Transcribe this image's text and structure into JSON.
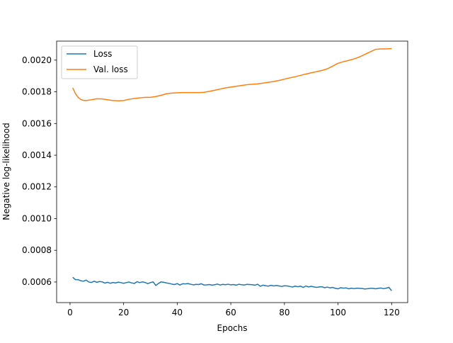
{
  "chart_data": {
    "type": "line",
    "title": "",
    "xlabel": "Epochs",
    "ylabel": "Negative log-likelihood",
    "xlim": [
      -5,
      126
    ],
    "ylim": [
      0.00047,
      0.00212
    ],
    "xticks": [
      0,
      20,
      40,
      60,
      80,
      100,
      120
    ],
    "yticks": [
      0.0006,
      0.0008,
      0.001,
      0.0012,
      0.0014,
      0.0016,
      0.0018,
      0.002
    ],
    "ytick_labels": [
      "0.0006",
      "0.0008",
      "0.0010",
      "0.0012",
      "0.0014",
      "0.0016",
      "0.0018",
      "0.0020"
    ],
    "grid": false,
    "legend_position": "top-left",
    "series": [
      {
        "name": "Loss",
        "color": "#1f77b4",
        "x": [
          1,
          2,
          3,
          4,
          5,
          6,
          7,
          8,
          9,
          10,
          11,
          12,
          13,
          14,
          15,
          16,
          17,
          18,
          19,
          20,
          21,
          22,
          23,
          24,
          25,
          26,
          27,
          28,
          29,
          30,
          31,
          32,
          33,
          34,
          35,
          36,
          37,
          38,
          39,
          40,
          41,
          42,
          43,
          44,
          45,
          46,
          47,
          48,
          49,
          50,
          51,
          52,
          53,
          54,
          55,
          56,
          57,
          58,
          59,
          60,
          61,
          62,
          63,
          64,
          65,
          66,
          67,
          68,
          69,
          70,
          71,
          72,
          73,
          74,
          75,
          76,
          77,
          78,
          79,
          80,
          81,
          82,
          83,
          84,
          85,
          86,
          87,
          88,
          89,
          90,
          91,
          92,
          93,
          94,
          95,
          96,
          97,
          98,
          99,
          100,
          101,
          102,
          103,
          104,
          105,
          106,
          107,
          108,
          109,
          110,
          111,
          112,
          113,
          114,
          115,
          116,
          117,
          118,
          119,
          120
        ],
        "y": [
          0.00063,
          0.000615,
          0.000615,
          0.000608,
          0.000605,
          0.000612,
          0.0006,
          0.000597,
          0.000605,
          0.000598,
          0.000603,
          0.000601,
          0.000593,
          0.000598,
          0.000592,
          0.000597,
          0.000594,
          0.000599,
          0.000596,
          0.000592,
          0.000596,
          0.0006,
          0.000594,
          0.000591,
          0.000602,
          0.000596,
          0.000601,
          0.000597,
          0.00059,
          0.000596,
          0.000601,
          0.000578,
          0.000591,
          0.000601,
          0.000598,
          0.000594,
          0.000591,
          0.000587,
          0.000584,
          0.00059,
          0.000581,
          0.000589,
          0.000588,
          0.00059,
          0.000586,
          0.000582,
          0.000585,
          0.000584,
          0.000589,
          0.000581,
          0.000582,
          0.000584,
          0.00058,
          0.000583,
          0.000587,
          0.000581,
          0.000585,
          0.000583,
          0.000586,
          0.000582,
          0.000584,
          0.00058,
          0.000586,
          0.000583,
          0.000581,
          0.000585,
          0.000584,
          0.000583,
          0.00058,
          0.000586,
          0.000573,
          0.00058,
          0.000576,
          0.000574,
          0.000579,
          0.000575,
          0.000578,
          0.000575,
          0.000572,
          0.000576,
          0.000575,
          0.000572,
          0.000568,
          0.000574,
          0.00057,
          0.000574,
          0.000566,
          0.000575,
          0.000569,
          0.000573,
          0.000569,
          0.000566,
          0.000569,
          0.00057,
          0.000564,
          0.000568,
          0.000563,
          0.000566,
          0.00056,
          0.000557,
          0.000564,
          0.000561,
          0.000563,
          0.000557,
          0.000561,
          0.000558,
          0.000561,
          0.00056,
          0.000559,
          0.000556,
          0.000558,
          0.00056,
          0.00056,
          0.000557,
          0.00056,
          0.000562,
          0.000558,
          0.000561,
          0.000566,
          0.000545
        ]
      },
      {
        "name": "Val. loss",
        "color": "#ff7f0e",
        "x": [
          1,
          2,
          3,
          4,
          5,
          6,
          8,
          10,
          12,
          14,
          16,
          18,
          20,
          22,
          24,
          26,
          28,
          30,
          32,
          34,
          36,
          38,
          40,
          42,
          44,
          46,
          48,
          50,
          52,
          54,
          56,
          58,
          60,
          62,
          64,
          66,
          68,
          70,
          72,
          74,
          76,
          78,
          80,
          82,
          84,
          86,
          88,
          90,
          92,
          94,
          96,
          98,
          100,
          102,
          104,
          106,
          108,
          110,
          112,
          114,
          116,
          118,
          120
        ],
        "y": [
          0.001825,
          0.00179,
          0.001765,
          0.001752,
          0.001746,
          0.001745,
          0.00175,
          0.001756,
          0.001755,
          0.00175,
          0.001745,
          0.001743,
          0.001745,
          0.001753,
          0.001758,
          0.001762,
          0.001765,
          0.001765,
          0.00177,
          0.001778,
          0.001788,
          0.001792,
          0.001794,
          0.001795,
          0.001795,
          0.001795,
          0.001795,
          0.001797,
          0.001803,
          0.00181,
          0.001817,
          0.001825,
          0.00183,
          0.001835,
          0.00184,
          0.001845,
          0.001848,
          0.00185,
          0.001855,
          0.00186,
          0.001865,
          0.001872,
          0.00188,
          0.001888,
          0.001895,
          0.001904,
          0.001912,
          0.00192,
          0.001927,
          0.001935,
          0.001945,
          0.001962,
          0.00198,
          0.00199,
          0.001998,
          0.002008,
          0.00202,
          0.002036,
          0.002052,
          0.002068,
          0.002071,
          0.002071,
          0.002073
        ]
      }
    ]
  }
}
